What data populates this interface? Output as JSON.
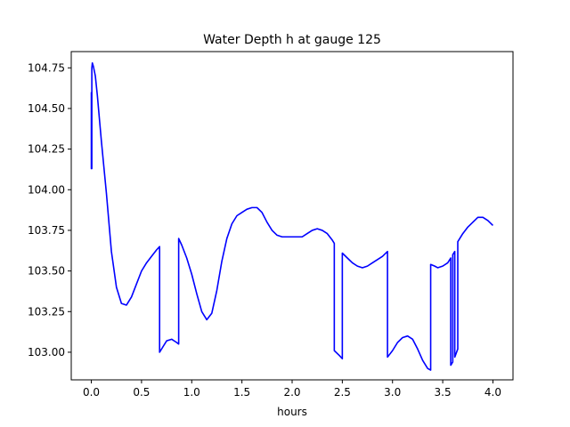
{
  "chart_data": {
    "type": "line",
    "title": "Water Depth h at gauge 125",
    "xlabel": "hours",
    "ylabel": "",
    "xlim": [
      -0.2,
      4.2
    ],
    "ylim": [
      102.83,
      104.85
    ],
    "x_ticks": [
      0.0,
      0.5,
      1.0,
      1.5,
      2.0,
      2.5,
      3.0,
      3.5,
      4.0
    ],
    "x_tick_labels": [
      "0.0",
      "0.5",
      "1.0",
      "1.5",
      "2.0",
      "2.5",
      "3.0",
      "3.5",
      "4.0"
    ],
    "y_ticks": [
      103.0,
      103.25,
      103.5,
      103.75,
      104.0,
      104.25,
      104.5,
      104.75
    ],
    "y_tick_labels": [
      "103.00",
      "103.25",
      "103.50",
      "103.75",
      "104.00",
      "104.25",
      "104.50",
      "104.75"
    ],
    "grid": false,
    "series": [
      {
        "color": "#0000ff",
        "x": [
          0.0,
          0.0,
          0.005,
          0.005,
          0.01,
          0.02,
          0.04,
          0.06,
          0.08,
          0.1,
          0.15,
          0.2,
          0.25,
          0.3,
          0.35,
          0.4,
          0.45,
          0.5,
          0.55,
          0.6,
          0.65,
          0.68,
          0.68,
          0.72,
          0.75,
          0.8,
          0.85,
          0.87,
          0.87,
          0.9,
          0.95,
          1.0,
          1.05,
          1.1,
          1.15,
          1.2,
          1.25,
          1.3,
          1.35,
          1.4,
          1.45,
          1.5,
          1.55,
          1.6,
          1.65,
          1.7,
          1.75,
          1.8,
          1.85,
          1.9,
          1.95,
          2.0,
          2.05,
          2.1,
          2.15,
          2.2,
          2.25,
          2.3,
          2.35,
          2.4,
          2.42,
          2.42,
          2.47,
          2.5,
          2.5,
          2.55,
          2.6,
          2.65,
          2.7,
          2.75,
          2.8,
          2.85,
          2.9,
          2.95,
          2.95,
          3.0,
          3.05,
          3.1,
          3.15,
          3.2,
          3.25,
          3.3,
          3.35,
          3.38,
          3.38,
          3.42,
          3.45,
          3.5,
          3.55,
          3.58,
          3.58,
          3.6,
          3.6,
          3.62,
          3.62,
          3.65,
          3.65,
          3.7,
          3.75,
          3.8,
          3.85,
          3.9,
          3.95,
          4.0
        ],
        "y": [
          104.6,
          104.13,
          104.13,
          104.75,
          104.78,
          104.76,
          104.7,
          104.58,
          104.44,
          104.3,
          103.98,
          103.62,
          103.4,
          103.3,
          103.29,
          103.34,
          103.42,
          103.5,
          103.55,
          103.59,
          103.63,
          103.65,
          103.0,
          103.04,
          103.07,
          103.08,
          103.06,
          103.05,
          103.7,
          103.66,
          103.58,
          103.48,
          103.36,
          103.25,
          103.2,
          103.24,
          103.38,
          103.56,
          103.7,
          103.79,
          103.84,
          103.86,
          103.88,
          103.89,
          103.89,
          103.86,
          103.8,
          103.75,
          103.72,
          103.71,
          103.71,
          103.71,
          103.71,
          103.71,
          103.73,
          103.75,
          103.76,
          103.75,
          103.73,
          103.69,
          103.67,
          103.01,
          102.98,
          102.96,
          103.61,
          103.58,
          103.55,
          103.53,
          103.52,
          103.53,
          103.55,
          103.57,
          103.59,
          103.62,
          102.97,
          103.01,
          103.06,
          103.09,
          103.1,
          103.08,
          103.02,
          102.95,
          102.9,
          102.89,
          103.54,
          103.53,
          103.52,
          103.53,
          103.55,
          103.58,
          102.92,
          102.94,
          103.6,
          103.62,
          102.97,
          103.02,
          103.68,
          103.73,
          103.77,
          103.8,
          103.83,
          103.83,
          103.81,
          103.78
        ]
      }
    ]
  }
}
